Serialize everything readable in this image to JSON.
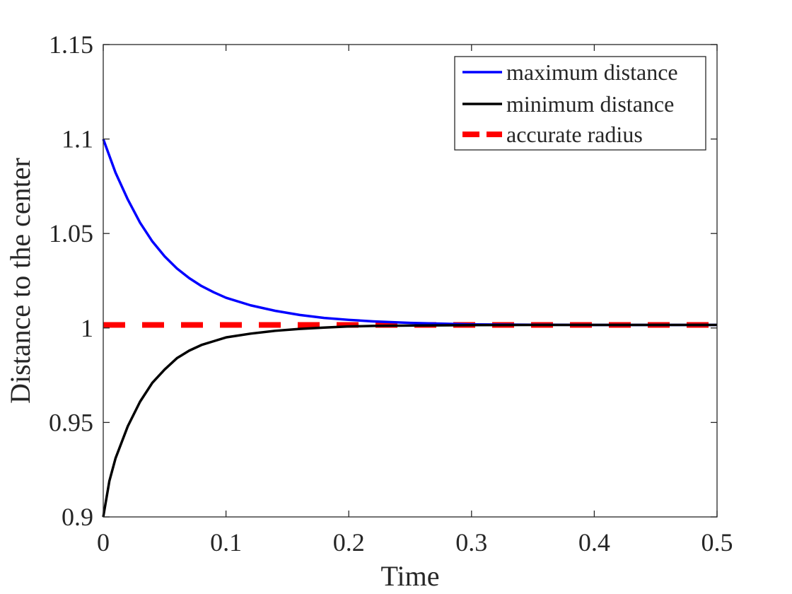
{
  "chart_data": {
    "type": "line",
    "title": "",
    "xlabel": "Time",
    "ylabel": "Distance to the center",
    "xlim": [
      0,
      0.5
    ],
    "ylim": [
      0.9,
      1.15
    ],
    "xticks": [
      "0",
      "0.1",
      "0.2",
      "0.3",
      "0.4",
      "0.5"
    ],
    "yticks": [
      "0.9",
      "0.95",
      "1",
      "1.05",
      "1.1",
      "1.15"
    ],
    "grid": false,
    "legend_position": "top-right",
    "series": [
      {
        "name": "maximum distance",
        "color": "#0000ff",
        "style": "solid",
        "x": [
          0,
          0.01,
          0.02,
          0.03,
          0.04,
          0.05,
          0.06,
          0.07,
          0.08,
          0.09,
          0.1,
          0.12,
          0.14,
          0.16,
          0.18,
          0.2,
          0.22,
          0.25,
          0.3,
          0.35,
          0.4,
          0.45,
          0.5
        ],
        "y": [
          1.1,
          1.0822,
          1.068,
          1.0557,
          1.0458,
          1.0379,
          1.0315,
          1.0264,
          1.0222,
          1.0189,
          1.016,
          1.012,
          1.0091,
          1.0069,
          1.0053,
          1.0043,
          1.0035,
          1.0027,
          1.0019,
          1.0017,
          1.0016,
          1.0016,
          1.0016
        ]
      },
      {
        "name": "minimum distance",
        "color": "#000000",
        "style": "solid",
        "x": [
          0,
          0.005,
          0.01,
          0.02,
          0.03,
          0.04,
          0.05,
          0.06,
          0.07,
          0.08,
          0.09,
          0.1,
          0.12,
          0.14,
          0.16,
          0.18,
          0.2,
          0.22,
          0.25,
          0.3,
          0.35,
          0.4,
          0.45,
          0.5
        ],
        "y": [
          0.9,
          0.919,
          0.931,
          0.948,
          0.961,
          0.971,
          0.978,
          0.984,
          0.988,
          0.991,
          0.993,
          0.995,
          0.997,
          0.9985,
          0.9995,
          1.0002,
          1.0008,
          1.0011,
          1.0013,
          1.0015,
          1.0016,
          1.0016,
          1.0016,
          1.0016
        ]
      },
      {
        "name": "accurate radius",
        "color": "#ff0000",
        "style": "dashed",
        "x": [
          0,
          0.5
        ],
        "y": [
          1.0016,
          1.0016
        ]
      }
    ]
  }
}
